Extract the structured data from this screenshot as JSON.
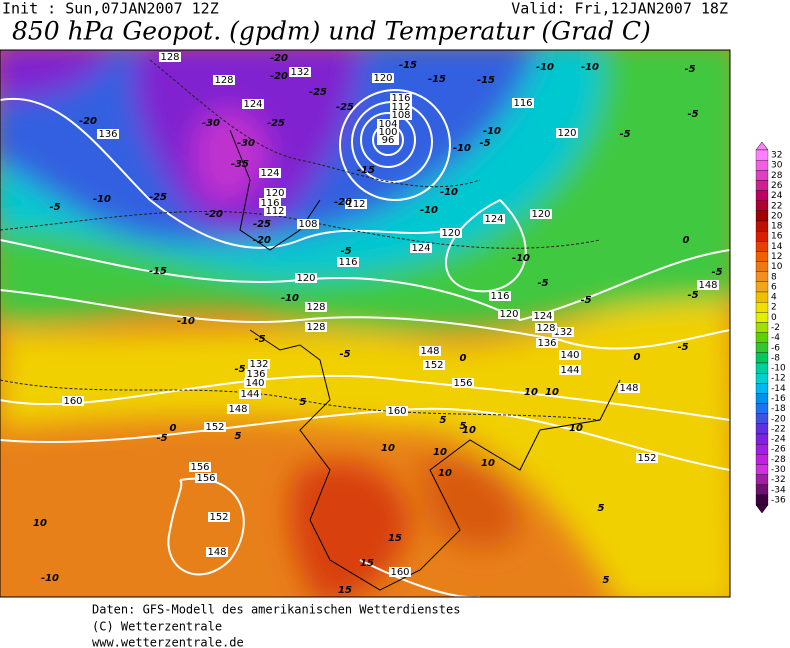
{
  "header": {
    "init": "Init : Sun,07JAN2007 12Z",
    "valid": "Valid: Fri,12JAN2007 18Z",
    "title": "850 hPa Geopot. (gpdm) und Temperatur (Grad C)"
  },
  "geopotential_labels": [
    128,
    128,
    132,
    120,
    116,
    112,
    108,
    104,
    100,
    96,
    136,
    124,
    124,
    120,
    116,
    112,
    108,
    112,
    116,
    120,
    124,
    128,
    128,
    132,
    136,
    140,
    144,
    148,
    152,
    160,
    156,
    156,
    152,
    148,
    160,
    160,
    156,
    152,
    148,
    136,
    132,
    128,
    124,
    120,
    116,
    120,
    124,
    120,
    120,
    116,
    140,
    144,
    148,
    152,
    148
  ],
  "temperature_labels": [
    -15,
    -15,
    -15,
    -10,
    -10,
    -5,
    -20,
    -20,
    -25,
    -25,
    -20,
    -30,
    -25,
    -30,
    -35,
    -15,
    -10,
    -5,
    -5,
    -5,
    -10,
    -10,
    -10,
    -25,
    -20,
    -20,
    -25,
    -20,
    -10,
    -5,
    -5,
    -15,
    -10,
    -10,
    -5,
    -5,
    -5,
    0,
    -5,
    -5,
    -10,
    0,
    -5,
    -5,
    -5,
    0,
    5,
    5,
    0,
    -5,
    5,
    10,
    10,
    10,
    10,
    10,
    10,
    10,
    5,
    5,
    15,
    15,
    15,
    10,
    -10,
    10,
    5
  ],
  "color_scale": {
    "labels": [
      32,
      30,
      28,
      26,
      24,
      22,
      20,
      18,
      16,
      14,
      12,
      10,
      8,
      6,
      4,
      2,
      0,
      -2,
      -4,
      -6,
      -8,
      -10,
      -12,
      -14,
      -16,
      -18,
      -20,
      -22,
      -24,
      -26,
      -28,
      -30,
      -32,
      -34,
      -36
    ],
    "colors": [
      "#ff80ff",
      "#f060e0",
      "#e040c0",
      "#d02090",
      "#c00060",
      "#b00030",
      "#a00000",
      "#c01000",
      "#d82000",
      "#e84000",
      "#f06000",
      "#f07810",
      "#f09020",
      "#f0a818",
      "#f0c000",
      "#f0e000",
      "#e0f000",
      "#a0e000",
      "#60d000",
      "#30c830",
      "#00c860",
      "#00d0a0",
      "#00d0d0",
      "#00b8f0",
      "#0090f0",
      "#2070f0",
      "#4050e0",
      "#6030e0",
      "#8020e0",
      "#a020e0",
      "#c020e0",
      "#d030e0",
      "#a020a0",
      "#701070",
      "#400040"
    ]
  },
  "footer": {
    "line1": "Daten: GFS-Modell des amerikanischen Wetterdienstes",
    "line2": "(C) Wetterzentrale",
    "line3": "www.wetterzentrale.de"
  }
}
